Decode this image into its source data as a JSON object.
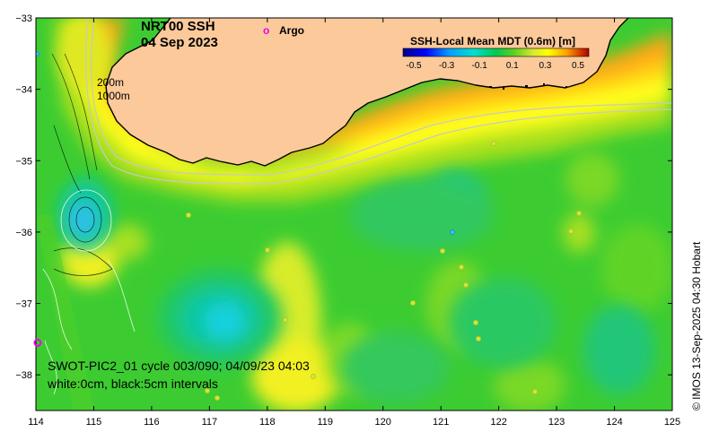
{
  "title": {
    "line1": "NRT00 SSH",
    "line2": "04 Sep 2023"
  },
  "legend": {
    "argo_marker": "o",
    "argo_label": "Argo",
    "argo_color": "#ee00ee",
    "colorbar_title": "SSH-Local Mean MDT (0.6m) [m]",
    "colorbar_ticks": [
      "-0.5",
      "-0.3",
      "-0.1",
      "0.1",
      "0.3",
      "0.5"
    ],
    "colorbar_colors": [
      "#00008b",
      "#0000ff",
      "#00a0ff",
      "#00e0d0",
      "#00c850",
      "#40d020",
      "#c8e030",
      "#ffff00",
      "#ffb000",
      "#ff6000",
      "#c00000"
    ]
  },
  "isobaths": {
    "label_200": "200m",
    "label_1000": "1000m"
  },
  "axes": {
    "x_ticks": [
      "114",
      "115",
      "116",
      "117",
      "118",
      "119",
      "120",
      "121",
      "122",
      "123",
      "124",
      "125"
    ],
    "y_ticks": [
      "−33",
      "−34",
      "−35",
      "−36",
      "−37",
      "−38"
    ]
  },
  "footer": {
    "swot_line": "SWOT-PIC2_01 cycle 003/090; 04/09/23 04:03",
    "contour_line": "white:0cm, black:5cm intervals"
  },
  "side_credit": "© IMOS 13-Sep-2025 04:30 Hobart",
  "colors": {
    "land": "#fcc99a",
    "ocean_base": "#3ccc32",
    "coast": "#000000"
  },
  "map_data": {
    "lon_range": [
      114,
      125
    ],
    "lat_range": [
      -38.5,
      -33
    ],
    "argo_floats": [
      {
        "lon": 114.03,
        "lat": -37.55
      }
    ]
  }
}
